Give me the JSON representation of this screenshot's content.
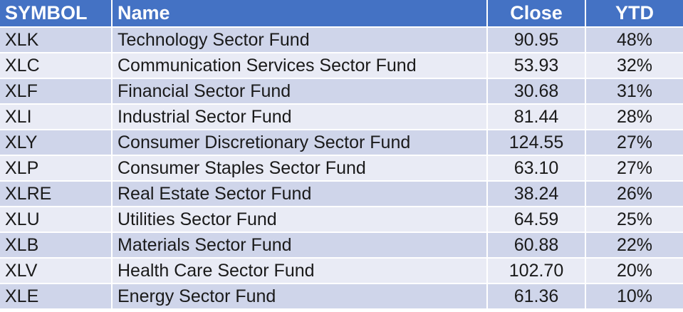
{
  "table": {
    "headers": {
      "symbol": "SYMBOL",
      "name": "Name",
      "close": "Close",
      "ytd": "YTD"
    },
    "rows": [
      {
        "symbol": "XLK",
        "name": "Technology Sector Fund",
        "close": "90.95",
        "ytd": "48%"
      },
      {
        "symbol": "XLC",
        "name": "Communication Services Sector Fund",
        "close": "53.93",
        "ytd": "32%"
      },
      {
        "symbol": "XLF",
        "name": "Financial Sector Fund",
        "close": "30.68",
        "ytd": "31%"
      },
      {
        "symbol": "XLI",
        "name": "Industrial Sector Fund",
        "close": "81.44",
        "ytd": "28%"
      },
      {
        "symbol": "XLY",
        "name": "Consumer Discretionary Sector Fund",
        "close": "124.55",
        "ytd": "27%"
      },
      {
        "symbol": "XLP",
        "name": "Consumer Staples Sector Fund",
        "close": "63.10",
        "ytd": "27%"
      },
      {
        "symbol": "XLRE",
        "name": "Real Estate Sector Fund",
        "close": "38.24",
        "ytd": "26%"
      },
      {
        "symbol": "XLU",
        "name": "Utilities Sector Fund",
        "close": "64.59",
        "ytd": "25%"
      },
      {
        "symbol": "XLB",
        "name": "Materials Sector Fund",
        "close": "60.88",
        "ytd": "22%"
      },
      {
        "symbol": "XLV",
        "name": "Health Care Sector Fund",
        "close": "102.70",
        "ytd": "20%"
      },
      {
        "symbol": "XLE",
        "name": "Energy Sector Fund",
        "close": "61.36",
        "ytd": "10%"
      }
    ]
  },
  "colors": {
    "header_bg": "#4472c4",
    "row_odd_bg": "#cfd5ea",
    "row_even_bg": "#e9ebf5"
  }
}
